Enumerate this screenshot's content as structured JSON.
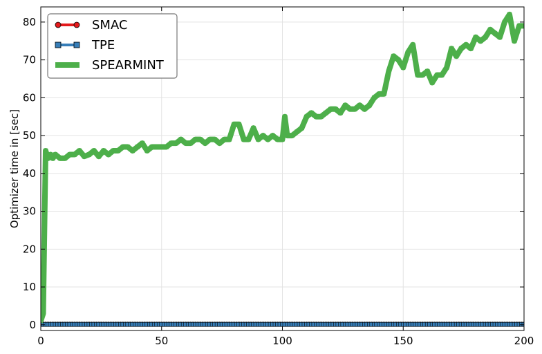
{
  "chart_data": {
    "type": "line",
    "xlabel": "",
    "ylabel": "Optimizer time in [sec]",
    "xlim": [
      0,
      200
    ],
    "ylim": [
      -1.5,
      84
    ],
    "xticks": [
      0,
      50,
      100,
      150,
      200
    ],
    "yticks": [
      0,
      10,
      20,
      30,
      40,
      50,
      60,
      70,
      80
    ],
    "grid": true,
    "legend_position": "top-left",
    "series": [
      {
        "name": "SMAC",
        "color": "#e41a1c",
        "marker": "circle",
        "constant_value": 0.2
      },
      {
        "name": "TPE",
        "color": "#377eb8",
        "marker": "square",
        "constant_value": 0.1
      },
      {
        "name": "SPEARMINT",
        "color": "#4daf4a",
        "marker": "x",
        "x": [
          0,
          1,
          2,
          3,
          4,
          5,
          6,
          8,
          10,
          12,
          14,
          16,
          18,
          20,
          22,
          24,
          26,
          28,
          30,
          32,
          34,
          36,
          38,
          40,
          42,
          44,
          46,
          48,
          50,
          52,
          54,
          56,
          58,
          60,
          62,
          64,
          66,
          68,
          70,
          72,
          74,
          76,
          78,
          80,
          82,
          84,
          86,
          88,
          90,
          92,
          94,
          96,
          98,
          100,
          101,
          102,
          104,
          106,
          108,
          110,
          112,
          114,
          116,
          118,
          120,
          122,
          124,
          126,
          128,
          130,
          132,
          134,
          136,
          138,
          140,
          142,
          144,
          146,
          148,
          150,
          152,
          154,
          156,
          158,
          160,
          162,
          164,
          166,
          168,
          170,
          172,
          174,
          176,
          178,
          180,
          182,
          184,
          186,
          188,
          190,
          192,
          194,
          196,
          198,
          200
        ],
        "values": [
          1,
          3,
          46,
          44,
          45,
          44,
          45,
          44,
          44,
          45,
          45,
          46,
          44.5,
          45,
          46,
          44.5,
          46,
          45,
          46,
          46,
          47,
          47,
          46,
          47,
          48,
          46,
          47,
          47,
          47,
          47,
          48,
          48,
          49,
          48,
          48,
          49,
          49,
          48,
          49,
          49,
          48,
          49,
          49,
          53,
          53,
          49,
          49,
          52,
          49,
          50,
          49,
          50,
          49,
          49,
          55,
          50,
          50,
          51,
          52,
          55,
          56,
          55,
          55,
          56,
          57,
          57,
          56,
          58,
          57,
          57,
          58,
          57,
          58,
          60,
          61,
          61,
          67,
          71,
          70,
          68,
          72,
          74,
          66,
          66,
          67,
          64,
          66,
          66,
          68,
          73,
          71,
          73,
          74,
          73,
          76,
          75,
          76,
          78,
          77,
          76,
          80,
          82,
          75,
          79,
          79
        ]
      }
    ]
  }
}
